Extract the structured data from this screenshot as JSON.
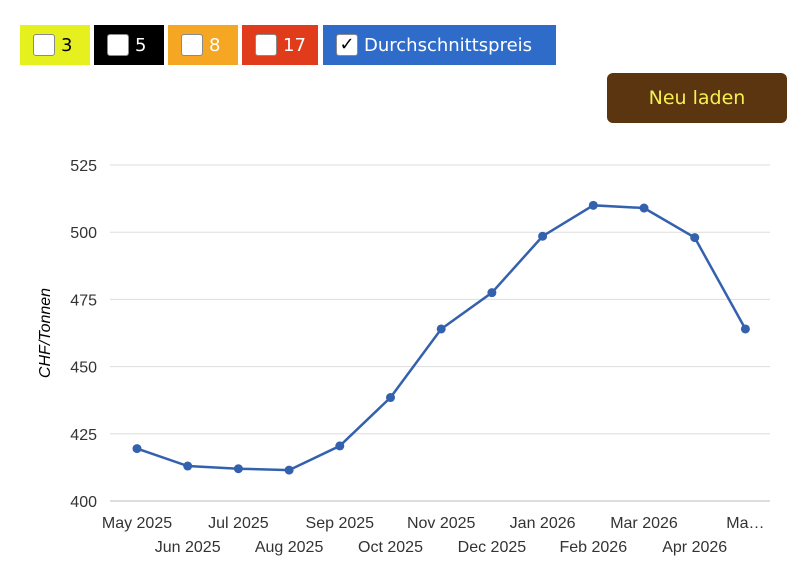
{
  "toggles": [
    {
      "label": "3",
      "checked": false,
      "bg": "#e6f01e",
      "fg": "#000000"
    },
    {
      "label": "5",
      "checked": false,
      "bg": "#000000",
      "fg": "#ffffff"
    },
    {
      "label": "8",
      "checked": false,
      "bg": "#f5a623",
      "fg": "#ffffff"
    },
    {
      "label": "17",
      "checked": false,
      "bg": "#e03c1c",
      "fg": "#ffffff"
    },
    {
      "label": "Durchschnittspreis",
      "checked": true,
      "bg": "#2f6bc9",
      "fg": "#ffffff"
    }
  ],
  "reload_button": {
    "label": "Neu laden",
    "bg": "#5a3510",
    "fg": "#f5f050"
  },
  "chart_data": {
    "type": "line",
    "ylabel": "CHF/Tonnen",
    "ylim": [
      400,
      525
    ],
    "yticks": [
      400,
      425,
      450,
      475,
      500,
      525
    ],
    "grid": true,
    "categories": [
      "May 2025",
      "Jun 2025",
      "Jul 2025",
      "Aug 2025",
      "Sep 2025",
      "Oct 2025",
      "Nov 2025",
      "Dec 2025",
      "Jan 2026",
      "Feb 2026",
      "Mar 2026",
      "Apr 2026",
      "Ma…"
    ],
    "series": [
      {
        "color": "#3461ad",
        "values": [
          419.5,
          413,
          412,
          411.5,
          420.5,
          438.5,
          464,
          477.5,
          498.5,
          510,
          509,
          498,
          464
        ]
      }
    ]
  }
}
